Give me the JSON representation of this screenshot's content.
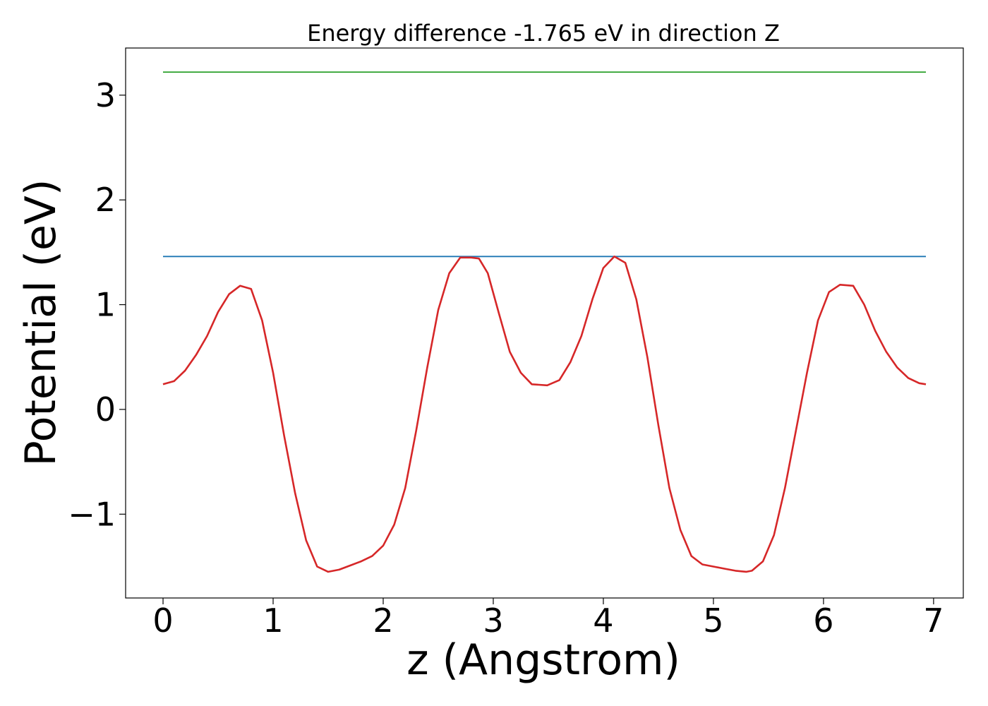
{
  "chart_data": {
    "type": "line",
    "title": "Energy difference -1.765 eV in direction Z",
    "xlabel": "z (Angstrom)",
    "ylabel": "Potential (eV)",
    "xlim": [
      -0.34,
      7.27
    ],
    "ylim": [
      -1.8,
      3.45
    ],
    "xticks": [
      0,
      1,
      2,
      3,
      4,
      5,
      6,
      7
    ],
    "xtick_labels": [
      "0",
      "1",
      "2",
      "3",
      "4",
      "5",
      "6",
      "7"
    ],
    "yticks": [
      -1,
      0,
      1,
      2,
      3
    ],
    "ytick_labels": [
      "−1",
      "0",
      "1",
      "2",
      "3"
    ],
    "grid": false,
    "series": [
      {
        "color": "#2ca02c",
        "x": [
          0,
          6.93
        ],
        "y": [
          3.22,
          3.22
        ]
      },
      {
        "color": "#1f77b4",
        "x": [
          0,
          6.93
        ],
        "y": [
          1.46,
          1.46
        ]
      },
      {
        "color": "#d62728",
        "x": [
          0.0,
          0.1,
          0.2,
          0.3,
          0.4,
          0.5,
          0.6,
          0.7,
          0.8,
          0.9,
          1.0,
          1.1,
          1.2,
          1.3,
          1.4,
          1.5,
          1.6,
          1.7,
          1.8,
          1.9,
          2.0,
          2.1,
          2.2,
          2.3,
          2.4,
          2.5,
          2.6,
          2.7,
          2.8,
          2.87,
          2.95,
          3.05,
          3.15,
          3.25,
          3.35,
          3.49,
          3.6,
          3.7,
          3.8,
          3.9,
          4.0,
          4.1,
          4.2,
          4.3,
          4.4,
          4.5,
          4.6,
          4.7,
          4.8,
          4.9,
          5.0,
          5.1,
          5.2,
          5.3,
          5.35,
          5.45,
          5.55,
          5.65,
          5.75,
          5.85,
          5.95,
          6.05,
          6.15,
          6.27,
          6.37,
          6.47,
          6.57,
          6.67,
          6.77,
          6.87,
          6.93
        ],
        "y": [
          0.24,
          0.27,
          0.37,
          0.52,
          0.7,
          0.93,
          1.1,
          1.18,
          1.15,
          0.85,
          0.35,
          -0.25,
          -0.8,
          -1.25,
          -1.5,
          -1.55,
          -1.53,
          -1.49,
          -1.45,
          -1.4,
          -1.3,
          -1.1,
          -0.75,
          -0.2,
          0.4,
          0.95,
          1.3,
          1.45,
          1.45,
          1.44,
          1.3,
          0.92,
          0.55,
          0.35,
          0.24,
          0.23,
          0.28,
          0.45,
          0.7,
          1.05,
          1.35,
          1.46,
          1.4,
          1.05,
          0.5,
          -0.15,
          -0.75,
          -1.15,
          -1.4,
          -1.48,
          -1.5,
          -1.52,
          -1.54,
          -1.55,
          -1.54,
          -1.45,
          -1.2,
          -0.75,
          -0.2,
          0.35,
          0.85,
          1.12,
          1.19,
          1.18,
          1.0,
          0.75,
          0.55,
          0.4,
          0.3,
          0.25,
          0.24
        ]
      }
    ]
  }
}
